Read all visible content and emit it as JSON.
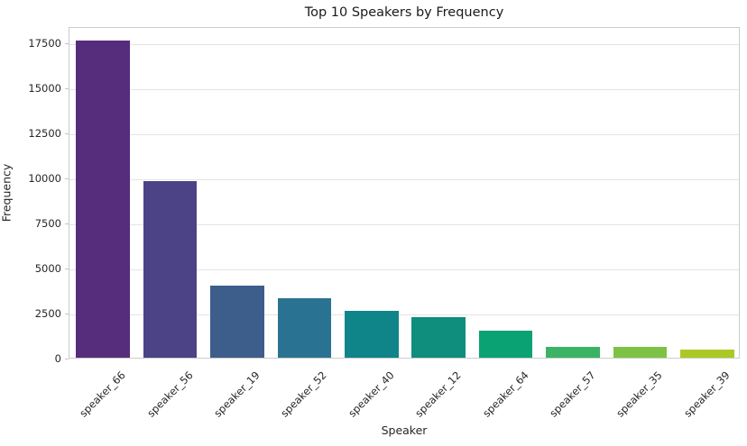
{
  "chart_data": {
    "type": "bar",
    "title": "Top 10 Speakers by Frequency",
    "xlabel": "Speaker",
    "ylabel": "Frequency",
    "categories": [
      "speaker_66",
      "speaker_56",
      "speaker_19",
      "speaker_52",
      "speaker_40",
      "speaker_12",
      "speaker_64",
      "speaker_57",
      "speaker_35",
      "speaker_39"
    ],
    "values": [
      17600,
      9800,
      4000,
      3300,
      2600,
      2250,
      1520,
      600,
      590,
      450
    ],
    "bar_colors": [
      "#552d7c",
      "#4b4386",
      "#3d5e8a",
      "#2a7291",
      "#0f8589",
      "#0f8e7d",
      "#0ba273",
      "#3bb365",
      "#7dc244",
      "#aac925"
    ],
    "yticks": [
      0,
      2500,
      5000,
      7500,
      10000,
      12500,
      15000,
      17500
    ],
    "ytick_labels": [
      "0",
      "2500",
      "5000",
      "7500",
      "10000",
      "12500",
      "15000",
      "17500"
    ],
    "ylim": [
      0,
      18400
    ],
    "xtick_rotation": 45,
    "grid": true,
    "legend_position": "none",
    "colors": {
      "grid": "#e4e4e4",
      "spine": "#cccccc",
      "tick_mark": "#c6c6c6",
      "text": "#262626",
      "title_text": "#1a1a1a",
      "background": "#ffffff"
    }
  }
}
